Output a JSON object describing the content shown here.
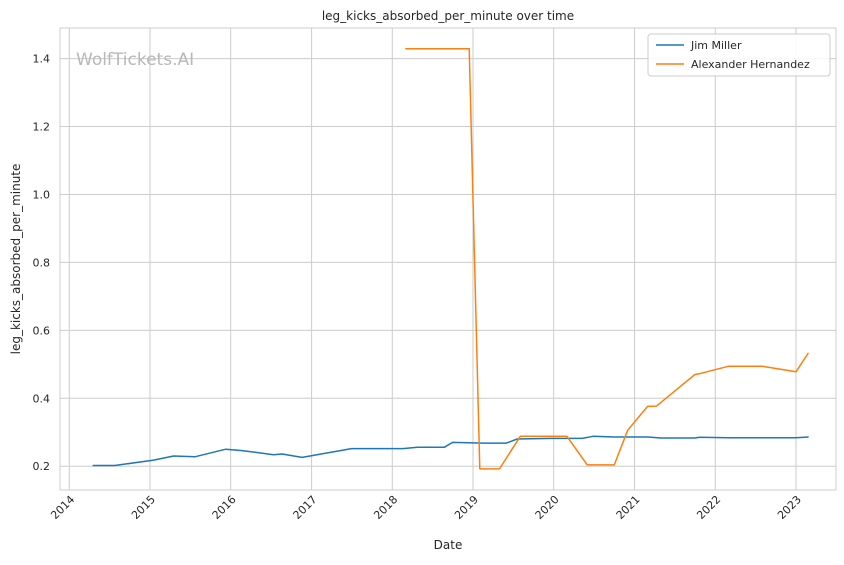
{
  "chart_data": {
    "type": "line",
    "title": "leg_kicks_absorbed_per_minute over time",
    "xlabel": "Date",
    "ylabel": "leg_kicks_absorbed_per_minute",
    "watermark": "WolfTickets.AI",
    "xlim": [
      "2013-11-20",
      "2023-07-01"
    ],
    "ylim": [
      0.13,
      1.49
    ],
    "x_ticks": [
      "2014",
      "2015",
      "2016",
      "2017",
      "2018",
      "2019",
      "2020",
      "2021",
      "2022",
      "2023"
    ],
    "y_ticks": [
      0.2,
      0.4,
      0.6,
      0.8,
      1.0,
      1.2,
      1.4
    ],
    "grid": true,
    "legend_position": "top-right",
    "series": [
      {
        "name": "Jim Miller",
        "color": "#1f77b4",
        "points": [
          [
            "2014-04-19",
            0.202
          ],
          [
            "2014-07-26",
            0.202
          ],
          [
            "2015-01-18",
            0.218
          ],
          [
            "2015-04-18",
            0.23
          ],
          [
            "2015-07-25",
            0.228
          ],
          [
            "2015-12-10",
            0.25
          ],
          [
            "2016-02-21",
            0.246
          ],
          [
            "2016-07-13",
            0.234
          ],
          [
            "2016-08-20",
            0.236
          ],
          [
            "2016-11-19",
            0.226
          ],
          [
            "2017-07-01",
            0.252
          ],
          [
            "2017-10-30",
            0.252
          ],
          [
            "2018-02-18",
            0.252
          ],
          [
            "2018-04-25",
            0.256
          ],
          [
            "2018-08-25",
            0.256
          ],
          [
            "2018-10-01",
            0.27
          ],
          [
            "2019-02-16",
            0.268
          ],
          [
            "2019-06-01",
            0.268
          ],
          [
            "2019-07-20",
            0.28
          ],
          [
            "2019-12-21",
            0.282
          ],
          [
            "2020-05-09",
            0.282
          ],
          [
            "2020-06-27",
            0.288
          ],
          [
            "2020-10-03",
            0.286
          ],
          [
            "2021-03-01",
            0.286
          ],
          [
            "2021-05-01",
            0.283
          ],
          [
            "2021-10-01",
            0.283
          ],
          [
            "2021-10-23",
            0.285
          ],
          [
            "2022-03-01",
            0.284
          ],
          [
            "2022-07-01",
            0.284
          ],
          [
            "2023-01-01",
            0.284
          ],
          [
            "2023-02-25",
            0.286
          ]
        ]
      },
      {
        "name": "Alexander Hernandez",
        "color": "#ff7f0e",
        "points": [
          [
            "2018-03-03",
            1.429
          ],
          [
            "2018-12-15",
            1.429
          ],
          [
            "2019-02-01",
            0.192
          ],
          [
            "2019-05-01",
            0.192
          ],
          [
            "2019-08-03",
            0.288
          ],
          [
            "2020-03-01",
            0.288
          ],
          [
            "2020-06-01",
            0.204
          ],
          [
            "2020-10-01",
            0.204
          ],
          [
            "2020-12-01",
            0.306
          ],
          [
            "2021-03-01",
            0.376
          ],
          [
            "2021-04-10",
            0.377
          ],
          [
            "2021-10-01",
            0.47
          ],
          [
            "2021-10-20",
            0.472
          ],
          [
            "2022-03-01",
            0.494
          ],
          [
            "2022-08-01",
            0.494
          ],
          [
            "2023-01-01",
            0.478
          ],
          [
            "2023-02-25",
            0.532
          ]
        ]
      }
    ]
  }
}
